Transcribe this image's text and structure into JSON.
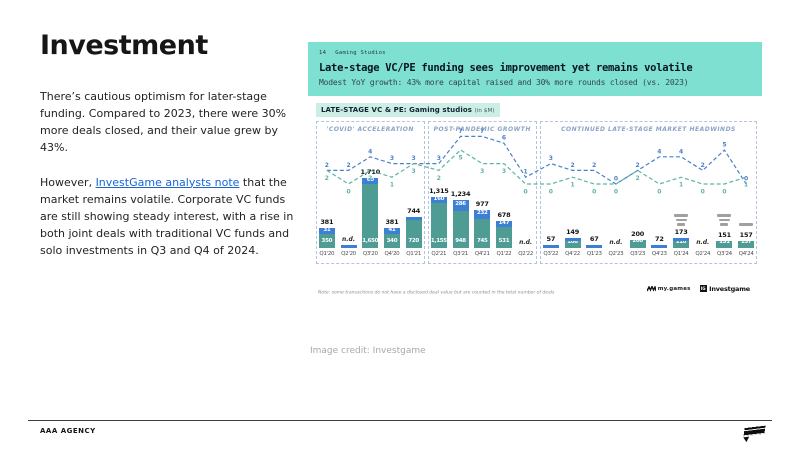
{
  "left": {
    "title": "Investment",
    "p1": "There’s cautious optimism for later-stage funding. Compared to 2023, there were 30% more deals closed, and their value grew by 43%.",
    "p2_before": "However, ",
    "p2_link": "InvestGame analysts note",
    "p2_after": " that the market remains volatile. Corporate VC funds are still showing steady interest, with a rise in both joint deals with traditional VC funds and solo investments in Q3 and Q4 of 2024."
  },
  "card": {
    "page_number": "14",
    "kicker": "Gaming Studios",
    "title": "Late-stage VC/PE funding sees improvement yet remains volatile",
    "subtitle": "Modest YoY growth: 43% more capital raised and 30% more rounds closed (vs. 2023)",
    "header_bg": "#7ee0d0"
  },
  "chart_data": {
    "type": "bar",
    "title": "LATE-STAGE VC & PE: Gaming studios",
    "title_unit": "(in $M)",
    "nd_label": "n.d.",
    "colors": {
      "vc_bar": "#4f9c95",
      "pe_bar": "#3e7fd6",
      "line_blue": "#4a80c9",
      "line_teal": "#5fb3a5"
    },
    "sections": [
      {
        "label": "'COVID' ACCELERATION",
        "quarters": 5
      },
      {
        "label": "POST-PANDEMIC GROWTH",
        "quarters": 5
      },
      {
        "label": "CONTINUED LATE-STAGE MARKET HEADWINDS",
        "quarters": 10
      }
    ],
    "categories": [
      "Q1'20",
      "Q2'20",
      "Q3'20",
      "Q4'20",
      "Q1'21",
      "Q2'21",
      "Q3'21",
      "Q4'21",
      "Q1'22",
      "Q2'22",
      "Q3'22",
      "Q4'22",
      "Q1'23",
      "Q2'23",
      "Q3'23",
      "Q4'23",
      "Q1'24",
      "Q2'24",
      "Q3'24",
      "Q4'24"
    ],
    "bars": [
      {
        "q": "Q1'20",
        "total": 381,
        "total_label": "381",
        "vc": 350,
        "vc_label": "350",
        "pe": 31,
        "pe_label": "31"
      },
      {
        "q": "Q2'20",
        "nd": true,
        "pe": 25
      },
      {
        "q": "Q3'20",
        "total": 1710,
        "total_label": "1,710",
        "vc": 1650,
        "vc_label": "1,650",
        "pe": 60,
        "pe_label": "60"
      },
      {
        "q": "Q4'20",
        "total": 381,
        "total_label": "381",
        "vc": 340,
        "vc_label": "340",
        "pe": 41,
        "pe_label": "41"
      },
      {
        "q": "Q1'21",
        "total": 744,
        "total_label": "744",
        "vc": 720,
        "vc_label": "720",
        "pe": 24
      },
      {
        "q": "Q2'21",
        "total": 1315,
        "total_label": "1,315",
        "vc": 1155,
        "vc_label": "1,155",
        "pe": 160,
        "pe_label": "160"
      },
      {
        "q": "Q3'21",
        "total": 1234,
        "total_label": "1,234",
        "vc": 948,
        "vc_label": "948",
        "pe": 286,
        "pe_label": "286"
      },
      {
        "q": "Q4'21",
        "total": 977,
        "total_label": "977",
        "vc": 745,
        "vc_label": "745",
        "pe": 232,
        "pe_label": "232"
      },
      {
        "q": "Q1'22",
        "total": 678,
        "total_label": "678",
        "vc": 531,
        "vc_label": "531",
        "pe": 147,
        "pe_label": "147"
      },
      {
        "q": "Q2'22",
        "nd": true
      },
      {
        "q": "Q3'22",
        "total": 57,
        "total_label": "57",
        "pe": 57
      },
      {
        "q": "Q4'22",
        "total": 149,
        "total_label": "149",
        "vc": 100,
        "vc_label": "100",
        "pe": 49
      },
      {
        "q": "Q1'23",
        "total": 67,
        "total_label": "67",
        "pe": 67
      },
      {
        "q": "Q2'23",
        "nd": true
      },
      {
        "q": "Q3'23",
        "total": 200,
        "total_label": "200",
        "vc": 200,
        "vc_label": "200"
      },
      {
        "q": "Q4'23",
        "total": 72,
        "total_label": "72",
        "pe": 72
      },
      {
        "q": "Q1'24",
        "total": 173,
        "total_label": "173",
        "vc": 110,
        "vc_label": "110",
        "pe": 63
      },
      {
        "q": "Q2'24",
        "nd": true
      },
      {
        "q": "Q3'24",
        "total": 151,
        "total_label": "151",
        "vc": 151,
        "vc_label": "151"
      },
      {
        "q": "Q4'24",
        "total": 157,
        "total_label": "157",
        "vc": 157,
        "vc_label": "157"
      }
    ],
    "lines": [
      {
        "id": "blue",
        "color": "#4a80c9",
        "values": [
          2,
          2,
          4,
          3,
          3,
          3,
          7,
          7,
          6,
          1,
          3,
          2,
          2,
          0,
          2,
          4,
          4,
          2,
          5,
          0
        ]
      },
      {
        "id": "teal",
        "color": "#5fb3a5",
        "values": [
          2,
          0,
          2,
          1,
          3,
          2,
          5,
          3,
          3,
          0,
          0,
          1,
          0,
          0,
          2,
          0,
          1,
          0,
          0,
          1
        ]
      }
    ],
    "logo_annotations": [
      {
        "col": 16,
        "marks": 3
      },
      {
        "col": 18,
        "marks": 3
      },
      {
        "col": 19,
        "marks": 1
      }
    ],
    "footnote": "Note: some transactions do not have a disclosed deal value but are counted in the total number of deals"
  },
  "partner_logos": {
    "first": "my.games",
    "second_badge": "IG",
    "second": "Investgame"
  },
  "credit": "Image credit: Investgame",
  "footer": {
    "agency": "AAA AGENCY"
  }
}
